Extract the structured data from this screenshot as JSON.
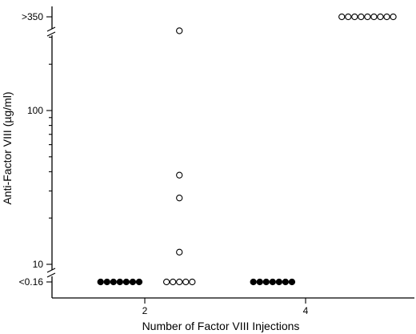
{
  "chart_data": {
    "type": "scatter",
    "title": "",
    "xlabel": "Number of Factor VIII Injections",
    "ylabel": "Anti-Factor VIII (µg/ml)",
    "x_ticks": [
      2,
      4
    ],
    "y_scale": "log",
    "y_ticks": [
      "<0.16",
      "10",
      "100",
      ">350"
    ],
    "grid": false,
    "series": [
      {
        "marker": "filled",
        "points": [
          {
            "x": 1.45,
            "y": "<0.16"
          },
          {
            "x": 1.53,
            "y": "<0.16"
          },
          {
            "x": 1.61,
            "y": "<0.16"
          },
          {
            "x": 1.69,
            "y": "<0.16"
          },
          {
            "x": 1.77,
            "y": "<0.16"
          },
          {
            "x": 1.85,
            "y": "<0.16"
          },
          {
            "x": 1.93,
            "y": "<0.16"
          },
          {
            "x": 3.35,
            "y": "<0.16"
          },
          {
            "x": 3.43,
            "y": "<0.16"
          },
          {
            "x": 3.51,
            "y": "<0.16"
          },
          {
            "x": 3.59,
            "y": "<0.16"
          },
          {
            "x": 3.67,
            "y": "<0.16"
          },
          {
            "x": 3.75,
            "y": "<0.16"
          },
          {
            "x": 3.83,
            "y": "<0.16"
          }
        ]
      },
      {
        "marker": "open",
        "points": [
          {
            "x": 2.27,
            "y": "<0.16"
          },
          {
            "x": 2.35,
            "y": "<0.16"
          },
          {
            "x": 2.43,
            "y": "<0.16"
          },
          {
            "x": 2.51,
            "y": "<0.16"
          },
          {
            "x": 2.59,
            "y": "<0.16"
          },
          {
            "x": 2.43,
            "y": 12
          },
          {
            "x": 2.43,
            "y": 27
          },
          {
            "x": 2.43,
            "y": 38
          },
          {
            "x": 2.43,
            "y": 330
          },
          {
            "x": 4.45,
            "y": ">350"
          },
          {
            "x": 4.53,
            "y": ">350"
          },
          {
            "x": 4.61,
            "y": ">350"
          },
          {
            "x": 4.69,
            "y": ">350"
          },
          {
            "x": 4.77,
            "y": ">350"
          },
          {
            "x": 4.85,
            "y": ">350"
          },
          {
            "x": 4.93,
            "y": ">350"
          },
          {
            "x": 5.01,
            "y": ">350"
          },
          {
            "x": 5.09,
            "y": ">350"
          }
        ]
      }
    ]
  }
}
